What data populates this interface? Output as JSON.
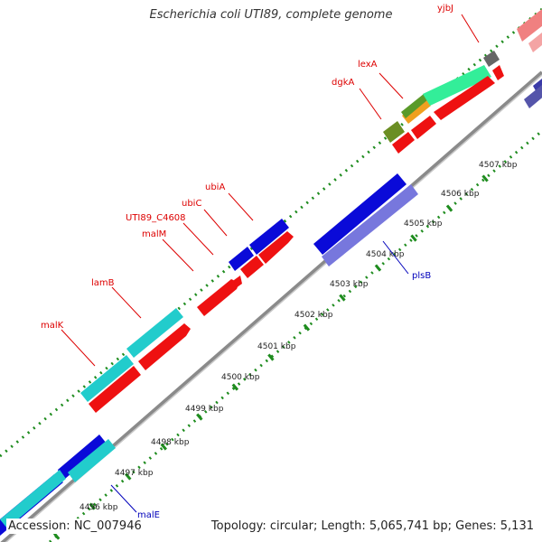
{
  "title": "Escherichia coli UTI89, complete genome",
  "footer": {
    "accession": "Accession: NC_007946",
    "stats": "Topology: circular; Length: 5,065,741 bp; Genes: 5,131"
  },
  "colors": {
    "backbone": "#888888",
    "tick": "#1e8c1e",
    "label_red": "#dd0000",
    "label_blue": "#0000bb"
  },
  "ticks": [
    {
      "label": "4496 kbp"
    },
    {
      "label": "4497 kbp"
    },
    {
      "label": "4498 kbp"
    },
    {
      "label": "4499 kbp"
    },
    {
      "label": "4500 kbp"
    },
    {
      "label": "4501 kbp"
    },
    {
      "label": "4502 kbp"
    },
    {
      "label": "4503 kbp"
    },
    {
      "label": "4504 kbp"
    },
    {
      "label": "4505 kbp"
    },
    {
      "label": "4506 kbp"
    },
    {
      "label": "4507 kbp"
    }
  ],
  "gene_labels": [
    {
      "text": "yjbJ",
      "color": "#dd0000"
    },
    {
      "text": "lexA",
      "color": "#dd0000"
    },
    {
      "text": "dgkA",
      "color": "#dd0000"
    },
    {
      "text": "ubiA",
      "color": "#dd0000"
    },
    {
      "text": "ubiC",
      "color": "#dd0000"
    },
    {
      "text": "UTI89_C4608",
      "color": "#dd0000"
    },
    {
      "text": "malM",
      "color": "#dd0000"
    },
    {
      "text": "lamB",
      "color": "#dd0000"
    },
    {
      "text": "malK",
      "color": "#dd0000"
    },
    {
      "text": "plsB",
      "color": "#0000bb"
    },
    {
      "text": "malE",
      "color": "#0000bb"
    }
  ]
}
